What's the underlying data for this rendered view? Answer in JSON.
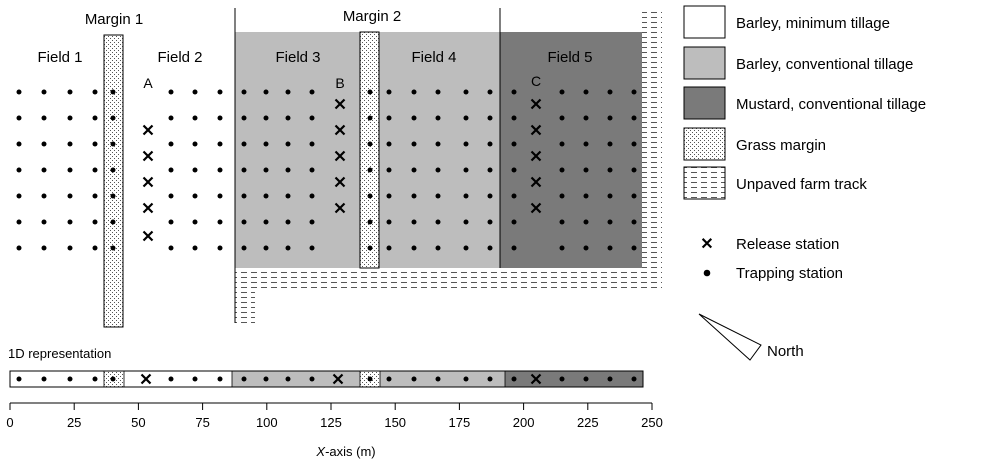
{
  "labels": {
    "margin1": "Margin 1",
    "margin2": "Margin 2",
    "fields": [
      "Field 1",
      "Field 2",
      "Field 3",
      "Field 4",
      "Field 5"
    ],
    "release_markers": [
      "A",
      "B",
      "C"
    ],
    "oned_title": "1D representation",
    "x_axis_prefix": "X",
    "x_axis_suffix": "-axis (m)"
  },
  "legend": {
    "items": [
      {
        "label": "Barley, minimum tillage",
        "fill": "#ffffff",
        "pattern": "none"
      },
      {
        "label": "Barley, conventional tillage",
        "fill": "#bdbdbd",
        "pattern": "none"
      },
      {
        "label": "Mustard, conventional tillage",
        "fill": "#7a7a7a",
        "pattern": "none"
      },
      {
        "label": "Grass margin",
        "fill": "#ffffff",
        "pattern": "stipple"
      },
      {
        "label": "Unpaved farm track",
        "fill": "#ffffff",
        "pattern": "dashes"
      }
    ],
    "release_station": "Release station",
    "trapping_station": "Trapping station",
    "north": "North"
  },
  "axis": {
    "ticks": [
      "0",
      "25",
      "50",
      "75",
      "100",
      "125",
      "150",
      "175",
      "200",
      "225",
      "250"
    ]
  },
  "colors": {
    "light_grey": "#bdbdbd",
    "dark_grey": "#7a7a7a",
    "ink": "#000000"
  }
}
